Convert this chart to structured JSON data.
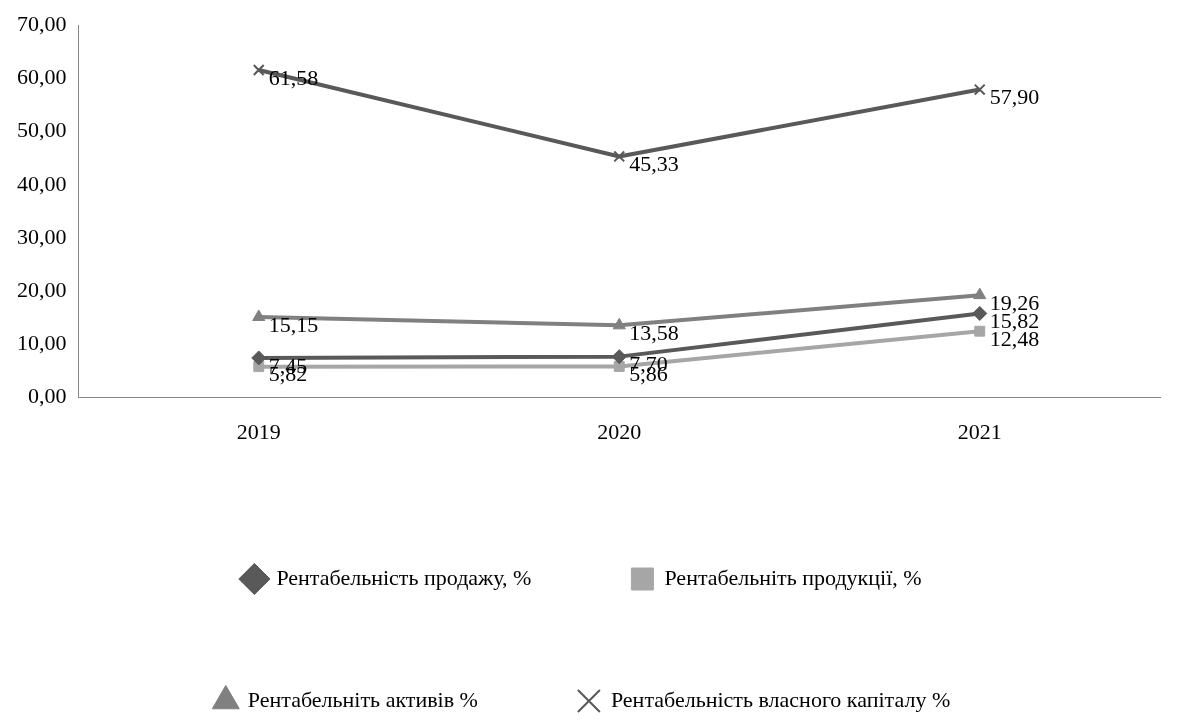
{
  "chart_data": {
    "type": "line",
    "categories": [
      "2019",
      "2020",
      "2021"
    ],
    "ylim": [
      0,
      70
    ],
    "yticks": [
      {
        "value": 0,
        "label": "0,00"
      },
      {
        "value": 10,
        "label": "10,00"
      },
      {
        "value": 20,
        "label": "20,00"
      },
      {
        "value": 30,
        "label": "30,00"
      },
      {
        "value": 40,
        "label": "40,00"
      },
      {
        "value": 50,
        "label": "50,00"
      },
      {
        "value": 60,
        "label": "60,00"
      },
      {
        "value": 70,
        "label": "70,00"
      }
    ],
    "grid": false,
    "legend": "bottom",
    "line_style": "solid",
    "series": [
      {
        "name": "Рентабельність продажу, %",
        "color": "#595959",
        "marker": "diamond",
        "values": [
          7.45,
          7.7,
          15.82
        ],
        "value_labels": [
          "7,45",
          "7,70",
          "15,82"
        ]
      },
      {
        "name": "Рентабельніть продукції, %",
        "color": "#a6a6a6",
        "marker": "square",
        "values": [
          5.82,
          5.86,
          12.48
        ],
        "value_labels": [
          "5,82",
          "5,86",
          "12,48"
        ]
      },
      {
        "name": "Рентабельніть активів %",
        "color": "#808080",
        "marker": "triangle",
        "values": [
          15.15,
          13.58,
          19.26
        ],
        "value_labels": [
          "15,15",
          "13,58",
          "19,26"
        ]
      },
      {
        "name": "Рентабельність власного капіталу %",
        "color": "#595959",
        "marker": "cross",
        "values": [
          61.58,
          45.33,
          57.9
        ],
        "value_labels": [
          "61,58",
          "45,33",
          "57,90"
        ]
      }
    ]
  }
}
